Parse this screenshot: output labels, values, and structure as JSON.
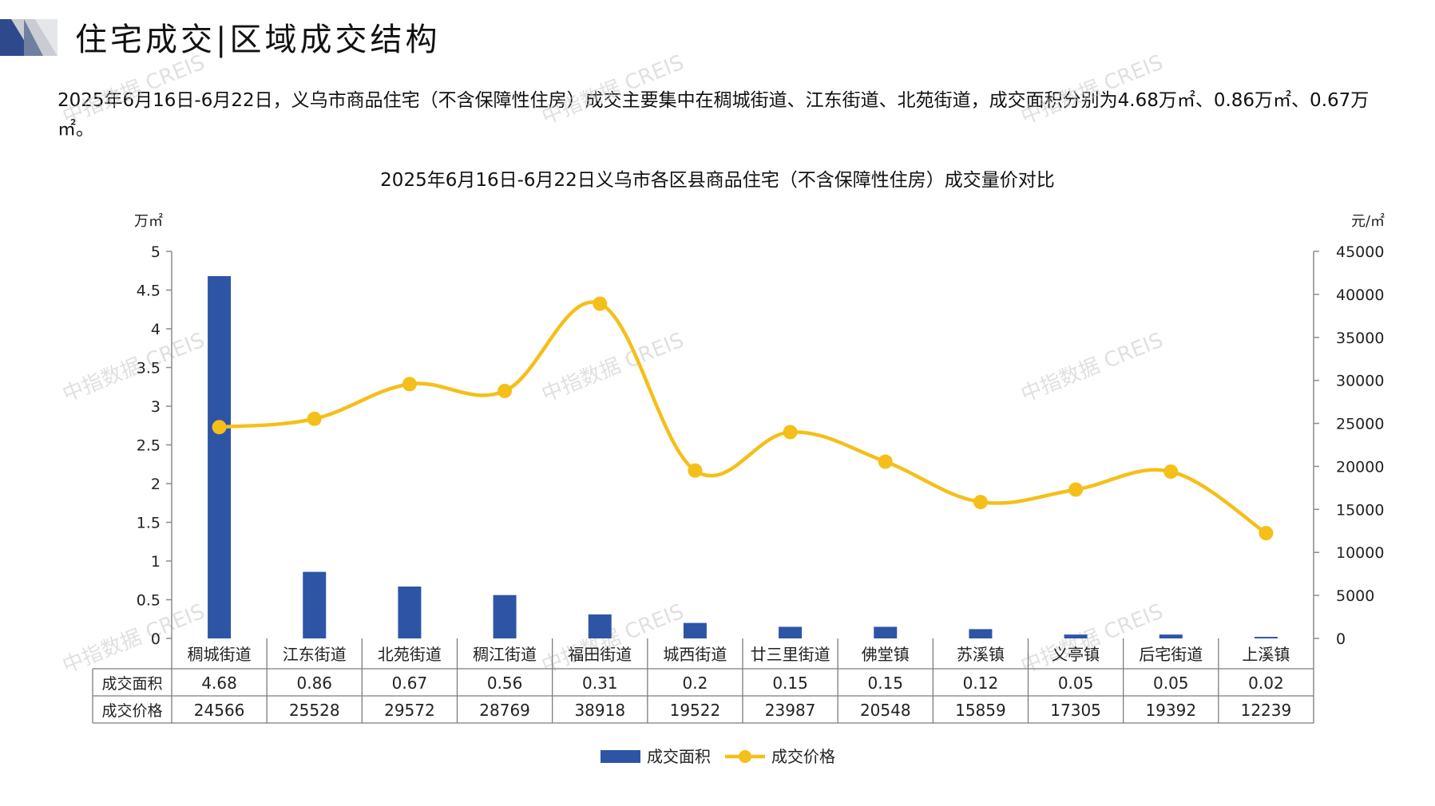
{
  "header": {
    "title": "住宅成交|区域成交结构"
  },
  "summary_text": "2025年6月16日-6月22日，义乌市商品住宅（不含保障性住房）成交主要集中在稠城街道、江东街道、北苑街道，成交面积分别为4.68万㎡、0.86万㎡、0.67万㎡。",
  "watermark_text": "中指数据 CREIS",
  "colors": {
    "bar": "#2e55a5",
    "line": "#f5bf19",
    "axis": "#8c8c8c",
    "grid": "#8c8c8c",
    "logo_dark": "#2e4a8c",
    "logo_light": "#b0b4be"
  },
  "chart_data": {
    "type": "bar",
    "title": "2025年6月16日-6月22日义乌市各区县商品住宅（不含保障性住房）成交量价对比",
    "y_left_unit": "万㎡",
    "y_right_unit": "元/㎡",
    "y_left_ticks": [
      "5",
      "4.5",
      "4",
      "3.5",
      "3",
      "2.5",
      "2",
      "1.5",
      "1",
      "0.5",
      "0"
    ],
    "y_right_ticks": [
      "45000",
      "40000",
      "35000",
      "30000",
      "25000",
      "20000",
      "15000",
      "10000",
      "5000",
      "0"
    ],
    "ylim_left": [
      0,
      5
    ],
    "ylim_right": [
      0,
      45000
    ],
    "categories": [
      "稠城街道",
      "江东街道",
      "北苑街道",
      "稠江街道",
      "福田街道",
      "城西街道",
      "廿三里街道",
      "佛堂镇",
      "苏溪镇",
      "义亭镇",
      "后宅街道",
      "上溪镇"
    ],
    "series": [
      {
        "name": "成交面积",
        "type": "bar",
        "axis": "left",
        "values": [
          4.68,
          0.86,
          0.67,
          0.56,
          0.31,
          0.2,
          0.15,
          0.15,
          0.12,
          0.05,
          0.05,
          0.02
        ],
        "labels": [
          "4.68",
          "0.86",
          "0.67",
          "0.56",
          "0.31",
          "0.2",
          "0.15",
          "0.15",
          "0.12",
          "0.05",
          "0.05",
          "0.02"
        ]
      },
      {
        "name": "成交价格",
        "type": "line",
        "axis": "right",
        "values": [
          24566,
          25528,
          29572,
          28769,
          38918,
          19522,
          23987,
          20548,
          15859,
          17305,
          19392,
          12239
        ],
        "labels": [
          "24566",
          "25528",
          "29572",
          "28769",
          "38918",
          "19522",
          "23987",
          "20548",
          "15859",
          "17305",
          "19392",
          "12239"
        ]
      }
    ],
    "legend_position": "bottom",
    "data_table": true
  }
}
